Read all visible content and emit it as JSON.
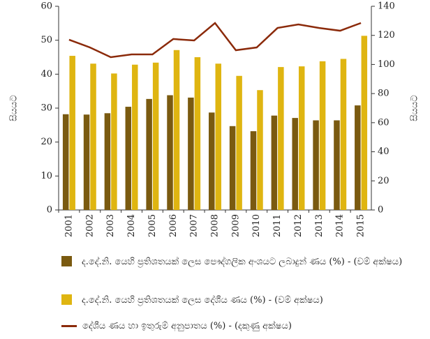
{
  "chart_data": {
    "type": "bar",
    "y_label": "සියයට",
    "y2_label": "සියයට",
    "categories": [
      "2001",
      "2002",
      "2003",
      "2004",
      "2005",
      "2006",
      "2007",
      "2008",
      "2009",
      "2010",
      "2011",
      "2012",
      "2013",
      "2014",
      "2015"
    ],
    "series": [
      {
        "name": "ද.දේ.නි. යෙහි ප්‍රතිශතයක් ලෙස පෞද්ගලික අංශයට ලබාදුන් ණය (%) - (වම් අක්ෂය)",
        "color": "#7a5a10",
        "type": "bar",
        "values": [
          28.2,
          28.1,
          28.5,
          30.4,
          32.7,
          33.8,
          33.1,
          28.7,
          24.7,
          23.2,
          27.8,
          27.1,
          26.4,
          26.4,
          30.8
        ]
      },
      {
        "name": "ද.දේ.නි. යෙහි ප්‍රතිශතයක් ලෙස දේශීය ණය (%) - (වම් අක්ෂය)",
        "color": "#dfb511",
        "type": "bar",
        "values": [
          45.4,
          43.1,
          40.2,
          42.8,
          43.4,
          47.1,
          45.0,
          43.1,
          39.5,
          35.3,
          42.1,
          42.3,
          43.8,
          44.5,
          51.3
        ]
      },
      {
        "name": "දේශීය ණය හා ඉතුරුම් අනුපාතය (%) - (දකුණු අක්ෂය)",
        "color": "#8b2a0a",
        "type": "line",
        "axis": "y2",
        "values": [
          117.0,
          111.7,
          105.0,
          106.9,
          106.9,
          117.5,
          116.5,
          128.5,
          109.8,
          111.7,
          125.1,
          127.5,
          125.1,
          123.2,
          128.5
        ]
      }
    ],
    "ylim": [
      0,
      60
    ],
    "yticks": [
      0,
      10,
      20,
      30,
      40,
      50,
      60
    ],
    "y2lim": [
      0,
      140
    ],
    "y2ticks": [
      0,
      20,
      40,
      60,
      80,
      100,
      120,
      140
    ]
  }
}
